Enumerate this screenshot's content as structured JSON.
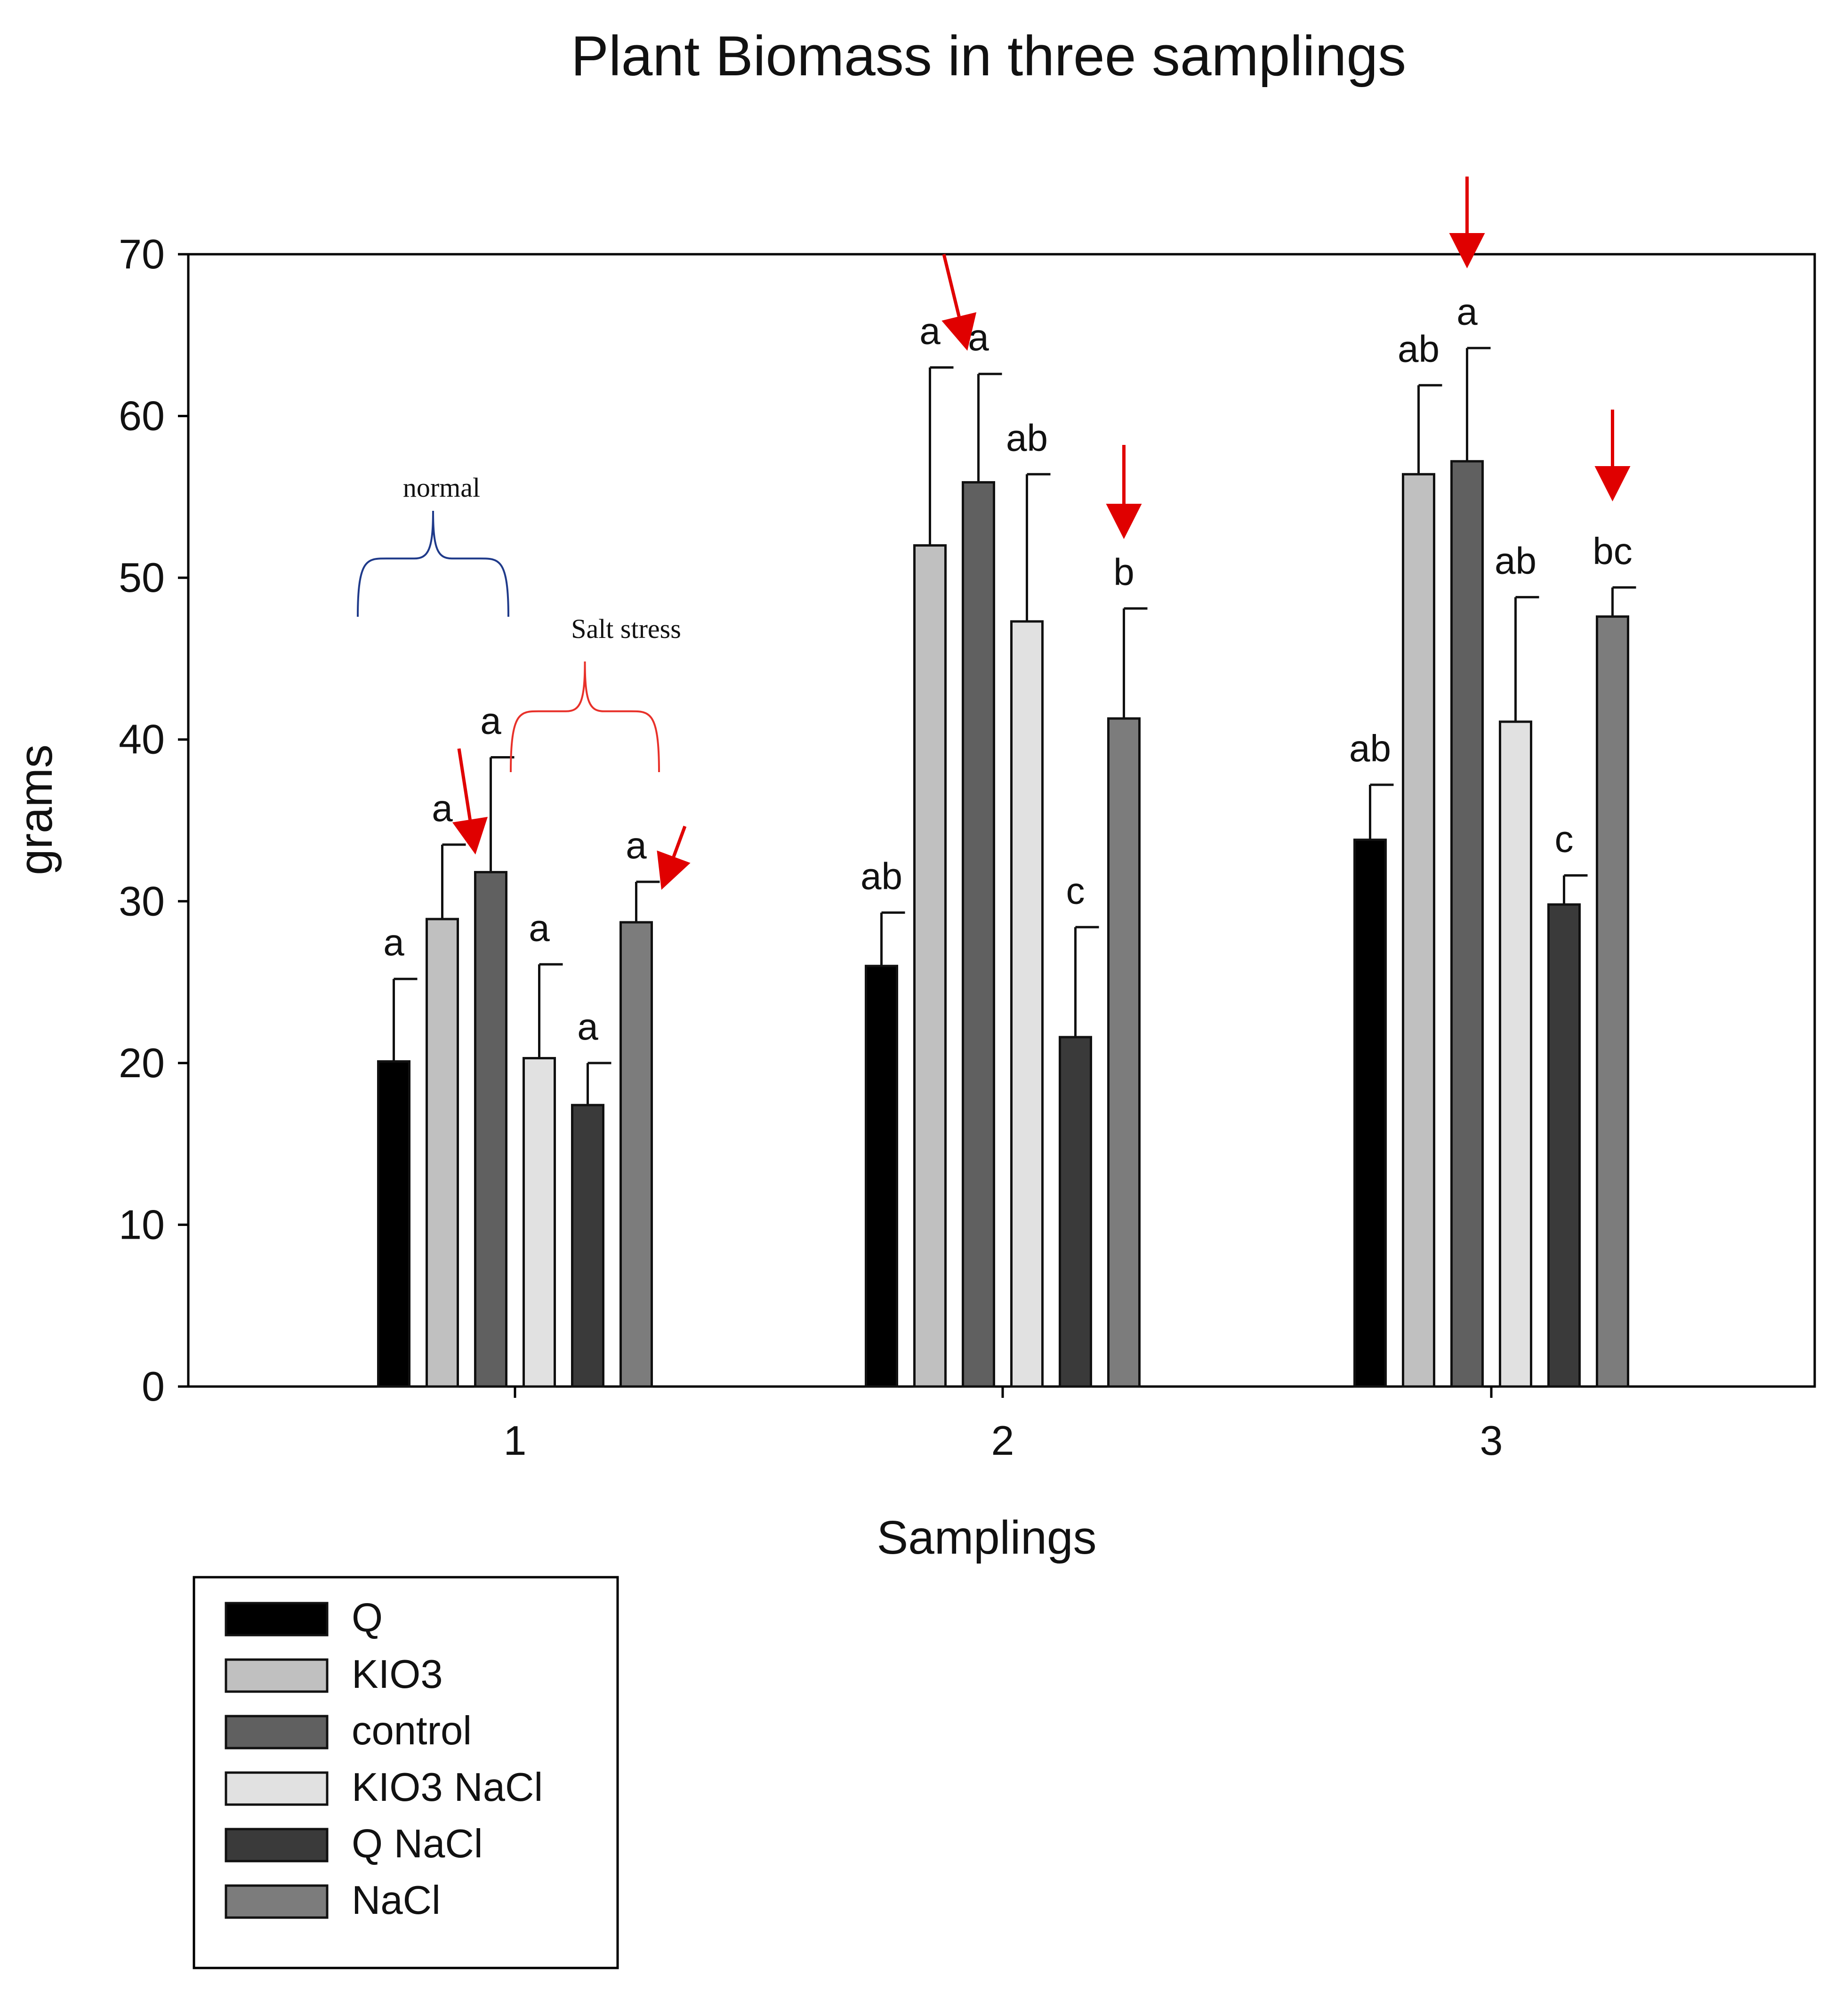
{
  "chart_data": {
    "type": "bar",
    "title": "Plant Biomass in three samplings",
    "xlabel": "Samplings",
    "ylabel": "grams",
    "ylim": [
      0,
      70
    ],
    "yticks": [
      0,
      10,
      20,
      30,
      40,
      50,
      60,
      70
    ],
    "categories": [
      "1",
      "2",
      "3"
    ],
    "grid": false,
    "legend_position": "bottom-left",
    "series": [
      {
        "name": "Q",
        "color": "#000000",
        "values": [
          20.1,
          26.0,
          33.8
        ],
        "errors": [
          5.1,
          3.3,
          3.4
        ],
        "letters": [
          "a",
          "ab",
          "ab"
        ]
      },
      {
        "name": "KIO3",
        "color": "#c0c0c0",
        "values": [
          28.9,
          52.0,
          56.4
        ],
        "errors": [
          4.6,
          11.0,
          5.5
        ],
        "letters": [
          "a",
          "a",
          "ab"
        ]
      },
      {
        "name": "control",
        "color": "#606060",
        "values": [
          31.8,
          55.9,
          57.2
        ],
        "errors": [
          7.1,
          6.7,
          7.0
        ],
        "letters": [
          "a",
          "a",
          "a"
        ]
      },
      {
        "name": "KIO3 NaCl",
        "color": "#e1e1e1",
        "values": [
          20.3,
          47.3,
          41.1
        ],
        "errors": [
          5.8,
          9.1,
          7.7
        ],
        "letters": [
          "a",
          "ab",
          "ab"
        ]
      },
      {
        "name": "Q NaCl",
        "color": "#3a3a3a",
        "values": [
          17.4,
          21.6,
          29.8
        ],
        "errors": [
          2.6,
          6.8,
          1.8
        ],
        "letters": [
          "a",
          "c",
          "c"
        ]
      },
      {
        "name": "NaCl",
        "color": "#7c7c7c",
        "values": [
          28.7,
          41.3,
          47.6
        ],
        "errors": [
          2.5,
          6.8,
          1.8
        ],
        "letters": [
          "a",
          "b",
          "bc"
        ]
      }
    ],
    "annotations": {
      "normal_label": "normal",
      "salt_stress_label": "Salt stress",
      "bracket_normal_color": "#1f3a8a",
      "bracket_salt_color": "#e8312a",
      "arrow_color": "#e00000",
      "arrows": [
        {
          "category": "1",
          "series": "control"
        },
        {
          "category": "1",
          "series": "NaCl"
        },
        {
          "category": "2",
          "series": "control"
        },
        {
          "category": "2",
          "series": "NaCl"
        },
        {
          "category": "3",
          "series": "control"
        },
        {
          "category": "3",
          "series": "NaCl"
        }
      ]
    }
  }
}
